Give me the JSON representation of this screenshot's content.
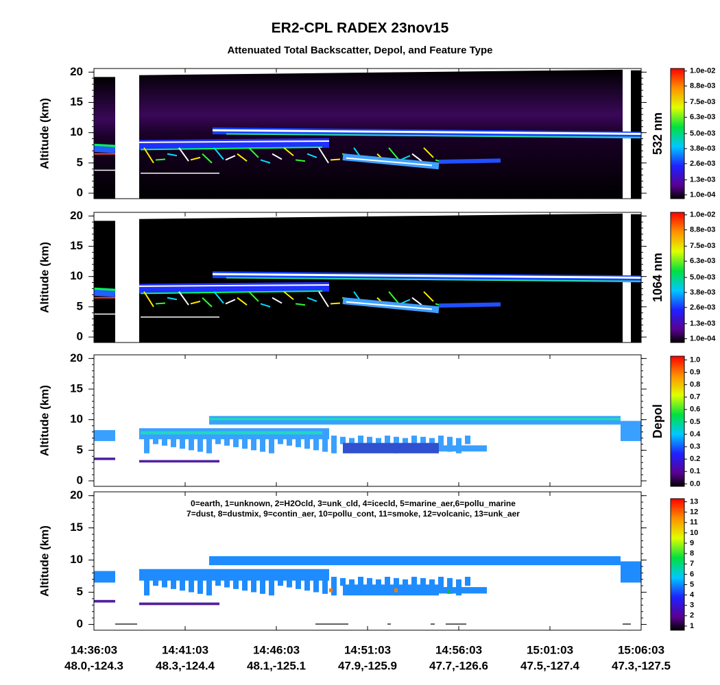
{
  "title": "ER2-CPL RADEX 23nov15",
  "subtitle": "Attenuated Total Backscatter, Depol, and Feature Type",
  "x_axis": {
    "times": [
      "14:36:03",
      "14:41:03",
      "14:46:03",
      "14:51:03",
      "14:56:03",
      "15:01:03",
      "15:06:03"
    ],
    "locations": [
      "48.0,-124.3",
      "48.3,-124.4",
      "48.1,-125.1",
      "47.9,-125.9",
      "47.7,-126.6",
      "47.5,-127.4",
      "47.3,-127.5"
    ]
  },
  "chart_data": [
    {
      "type": "heatmap",
      "ylabel": "Altitude (km)",
      "ylim": [
        -0.9,
        20.6
      ],
      "yticks": [
        0,
        5,
        10,
        15,
        20
      ],
      "colorbar": {
        "label": "532 nm",
        "lim": [
          -0.0002,
          0.0102
        ],
        "ticks": [
          {
            "value": 0.0001,
            "label": "1.0e-04"
          },
          {
            "value": 0.0013,
            "label": "1.3e-03"
          },
          {
            "value": 0.0026,
            "label": "2.6e-03"
          },
          {
            "value": 0.0038,
            "label": "3.8e-03"
          },
          {
            "value": 0.005,
            "label": "5.0e-03"
          },
          {
            "value": 0.0063,
            "label": "6.3e-03"
          },
          {
            "value": 0.0075,
            "label": "7.5e-03"
          },
          {
            "value": 0.0088,
            "label": "8.8e-03"
          },
          {
            "value": 0.01,
            "label": "1.0e-02"
          }
        ]
      }
    },
    {
      "type": "heatmap",
      "ylabel": "Altitude (km)",
      "ylim": [
        -0.9,
        20.6
      ],
      "yticks": [
        0,
        5,
        10,
        15,
        20
      ],
      "colorbar": {
        "label": "1064 nm",
        "lim": [
          -0.0002,
          0.0102
        ],
        "ticks": [
          {
            "value": 0.0001,
            "label": "1.0e-04"
          },
          {
            "value": 0.0013,
            "label": "1.3e-03"
          },
          {
            "value": 0.0026,
            "label": "2.6e-03"
          },
          {
            "value": 0.0038,
            "label": "3.8e-03"
          },
          {
            "value": 0.005,
            "label": "5.0e-03"
          },
          {
            "value": 0.0063,
            "label": "6.3e-03"
          },
          {
            "value": 0.0075,
            "label": "7.5e-03"
          },
          {
            "value": 0.0088,
            "label": "8.8e-03"
          },
          {
            "value": 0.01,
            "label": "1.0e-02"
          }
        ]
      }
    },
    {
      "type": "heatmap",
      "ylabel": "Altitude (km)",
      "ylim": [
        -0.9,
        20.6
      ],
      "yticks": [
        0,
        5,
        10,
        15,
        20
      ],
      "colorbar": {
        "label": "Depol",
        "lim": [
          -0.02,
          1.03
        ],
        "ticks": [
          {
            "value": 0,
            "label": "0.0"
          },
          0.1,
          0.2,
          0.3,
          0.4,
          0.5,
          0.6,
          0.7,
          0.8,
          0.9,
          {
            "value": 1,
            "label": "1.0"
          }
        ]
      }
    },
    {
      "type": "heatmap",
      "ylabel": "Altitude (km)",
      "ylim": [
        -0.9,
        20.6
      ],
      "yticks": [
        0,
        5,
        10,
        15,
        20
      ],
      "annotations": [
        "0=earth, 1=unknown, 2=H2Ocld, 3=unk_cld, 4=icecld, 5=marine_aer,6=pollu_marine",
        "7=dust, 8=dustmix, 9=contin_aer, 10=pollu_cont, 11=smoke, 12=volcanic, 13=unk_aer"
      ],
      "colorbar": {
        "lim": [
          0.6,
          13.3
        ],
        "ticks": [
          1,
          2,
          3,
          4,
          5,
          6,
          7,
          8,
          9,
          10,
          11,
          12,
          13
        ]
      }
    }
  ]
}
